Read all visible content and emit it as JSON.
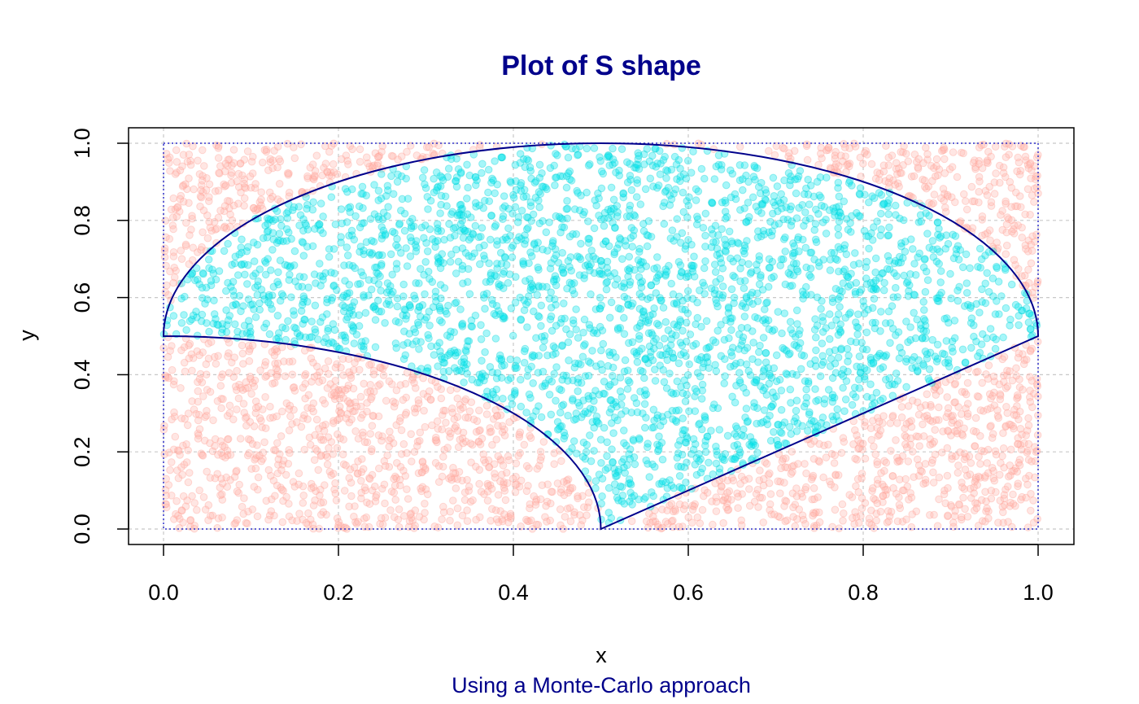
{
  "chart_data": {
    "type": "scatter",
    "title": "Plot of S shape",
    "subtitle": "Using a Monte-Carlo approach",
    "xlabel": "x",
    "ylabel": "y",
    "xlim": [
      0.0,
      1.0
    ],
    "ylim": [
      0.0,
      1.0
    ],
    "x_ticks": [
      "0.0",
      "0.2",
      "0.4",
      "0.6",
      "0.8",
      "1.0"
    ],
    "y_ticks": [
      "0.0",
      "0.2",
      "0.4",
      "0.6",
      "0.8",
      "1.0"
    ],
    "x_tick_values": [
      0.0,
      0.2,
      0.4,
      0.6,
      0.8,
      1.0
    ],
    "y_tick_values": [
      0.0,
      0.2,
      0.4,
      0.6,
      0.8,
      1.0
    ],
    "grid": true,
    "n_points": 5000,
    "colors": {
      "title": "#00008B",
      "subtitle": "#00008B",
      "inside_points": "#00E5EE",
      "outside_points": "#FFB6AE",
      "boundary": "#00008B",
      "grid": "#C8C8C8"
    },
    "shape": {
      "description_points": "S region boundary",
      "upper_arc": {
        "center": [
          0.5,
          0.5
        ],
        "rx": 0.5,
        "ry": 0.5,
        "from": [
          0.0,
          0.5
        ],
        "to": [
          1.0,
          0.5
        ]
      },
      "lower_arc": {
        "center": [
          0.0,
          0.0
        ],
        "rx": 0.5,
        "ry": 0.5,
        "from": [
          0.0,
          0.5
        ],
        "to": [
          0.5,
          0.0
        ]
      },
      "line": {
        "from": [
          0.5,
          0.0
        ],
        "to": [
          1.0,
          0.5
        ]
      }
    }
  }
}
